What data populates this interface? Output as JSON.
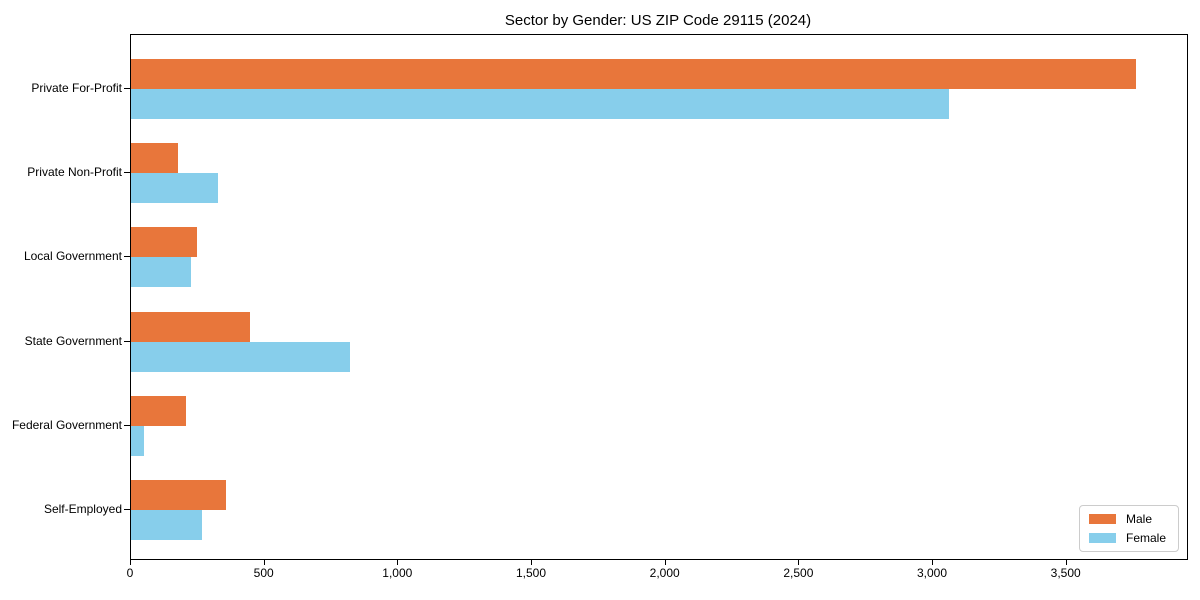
{
  "chart_data": {
    "type": "bar",
    "orientation": "horizontal",
    "title": "Sector by Gender: US ZIP Code 29115 (2024)",
    "categories": [
      "Private For-Profit",
      "Private Non-Profit",
      "Local Government",
      "State Government",
      "Federal Government",
      "Self-Employed"
    ],
    "series": [
      {
        "name": "Male",
        "color": "#e8763b",
        "values": [
          3760,
          175,
          245,
          445,
          205,
          355
        ]
      },
      {
        "name": "Female",
        "color": "#87ceeb",
        "values": [
          3060,
          325,
          225,
          820,
          50,
          265
        ]
      }
    ],
    "xlabel": "",
    "ylabel": "",
    "xlim": [
      0,
      3950
    ],
    "xticks": [
      0,
      500,
      1000,
      1500,
      2000,
      2500,
      3000,
      3500
    ],
    "xtick_labels": [
      "0",
      "500",
      "1,000",
      "1,500",
      "2,000",
      "2,500",
      "3,000",
      "3,500"
    ],
    "grid": false,
    "legend_position": "lower right",
    "colors": {
      "spine": "#000000",
      "legend_border": "#cccccc",
      "background": "#ffffff",
      "text": "#000000"
    }
  }
}
